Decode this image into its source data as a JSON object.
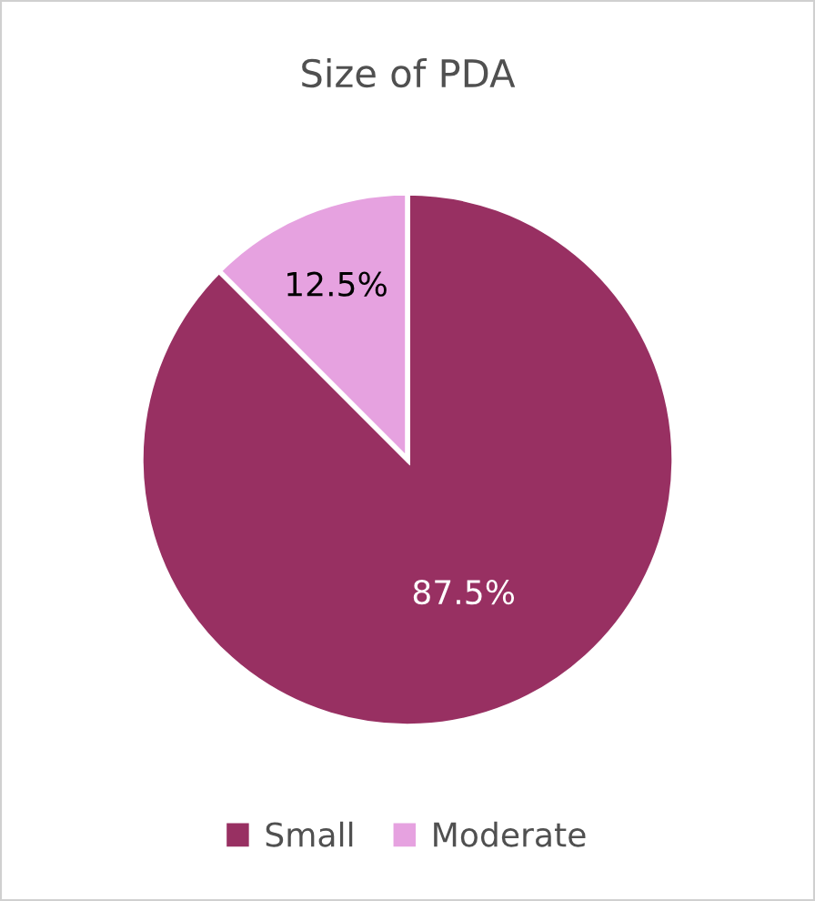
{
  "chart_data": {
    "type": "pie",
    "title": "Size of PDA",
    "categories": [
      "Small",
      "Moderate"
    ],
    "values": [
      87.5,
      12.5
    ],
    "colors": [
      "#983062",
      "#e6a2e0"
    ],
    "value_labels": [
      "87.5%",
      "12.5%"
    ],
    "legend": "bottom"
  }
}
